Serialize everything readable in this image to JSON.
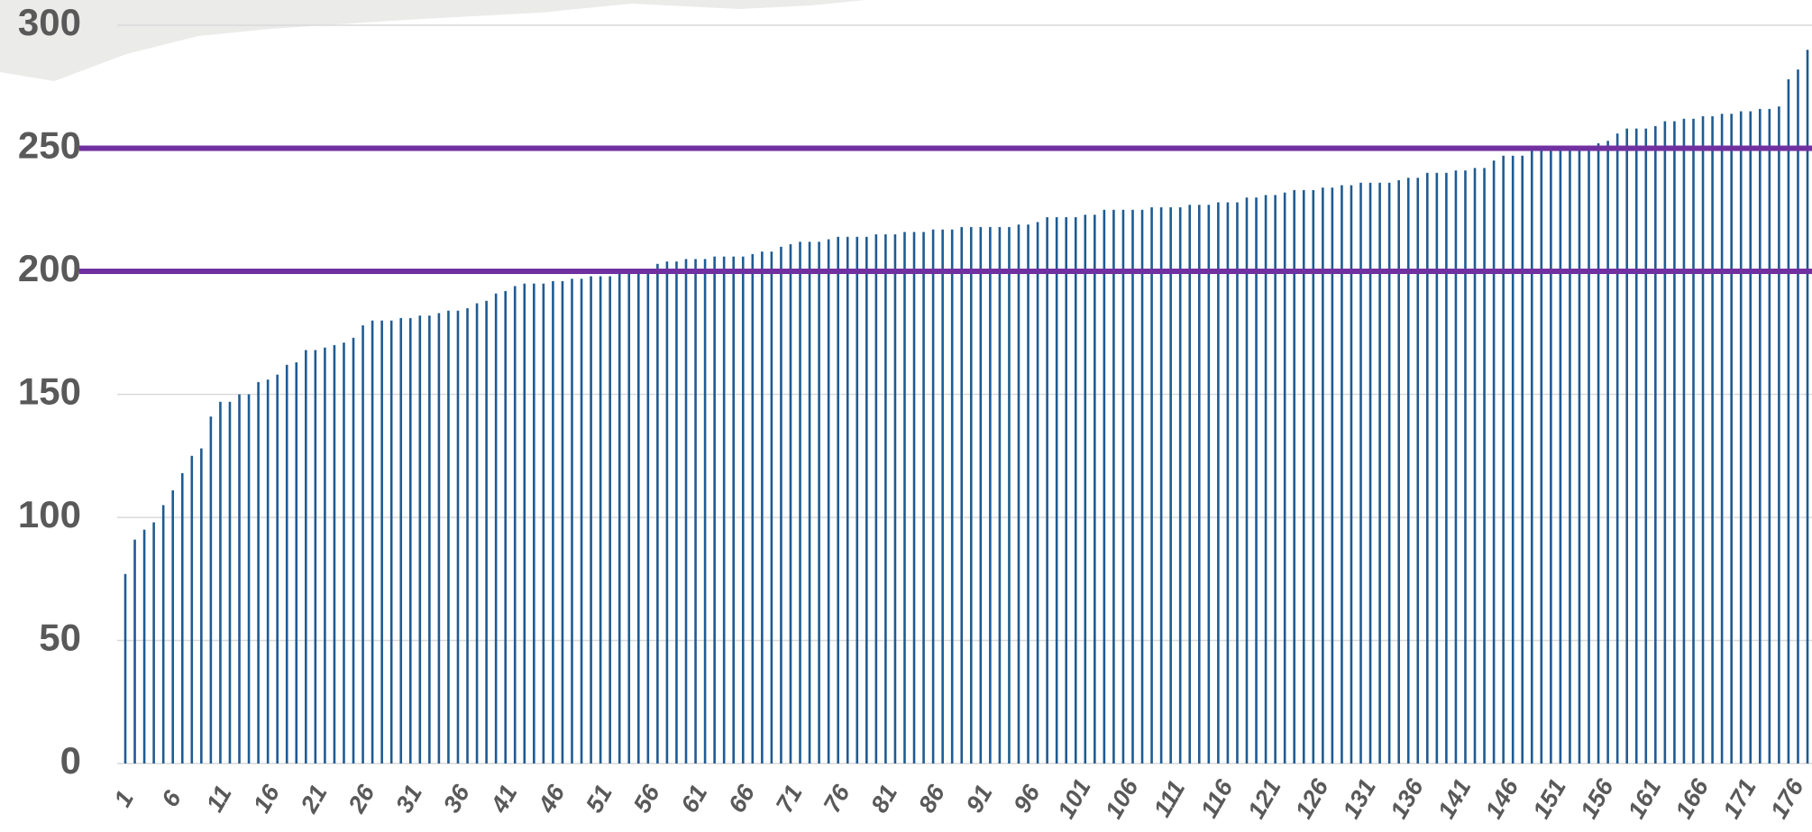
{
  "chart_data": {
    "type": "bar",
    "categories": [
      "1",
      null,
      null,
      null,
      null,
      "6",
      null,
      null,
      null,
      null,
      "11",
      null,
      null,
      null,
      null,
      "16",
      null,
      null,
      null,
      null,
      "21",
      null,
      null,
      null,
      null,
      "26",
      null,
      null,
      null,
      null,
      "31",
      null,
      null,
      null,
      null,
      "36",
      null,
      null,
      null,
      null,
      "41",
      null,
      null,
      null,
      null,
      "46",
      null,
      null,
      null,
      null,
      "51",
      null,
      null,
      null,
      null,
      "56",
      null,
      null,
      null,
      null,
      "61",
      null,
      null,
      null,
      null,
      "66",
      null,
      null,
      null,
      null,
      "71",
      null,
      null,
      null,
      null,
      "76",
      null,
      null,
      null,
      null,
      "81",
      null,
      null,
      null,
      null,
      "86",
      null,
      null,
      null,
      null,
      "91",
      null,
      null,
      null,
      null,
      "96",
      null,
      null,
      null,
      null,
      "101",
      null,
      null,
      null,
      null,
      "106",
      null,
      null,
      null,
      null,
      "111",
      null,
      null,
      null,
      null,
      "116",
      null,
      null,
      null,
      null,
      "121",
      null,
      null,
      null,
      null,
      "126",
      null,
      null,
      null,
      null,
      "131",
      null,
      null,
      null,
      null,
      "136",
      null,
      null,
      null,
      null,
      "141",
      null,
      null,
      null,
      null,
      "146",
      null,
      null,
      null,
      null,
      "151",
      null,
      null,
      null,
      null,
      "156",
      null,
      null,
      null,
      null,
      "161",
      null,
      null,
      null,
      null,
      "166",
      null,
      null,
      null,
      null,
      "171",
      null,
      null,
      null,
      null,
      "176",
      null,
      null
    ],
    "values": [
      77,
      91,
      95,
      98,
      105,
      111,
      118,
      125,
      128,
      141,
      147,
      147,
      150,
      150,
      155,
      156,
      158,
      162,
      163,
      168,
      168,
      169,
      170,
      171,
      173,
      178,
      180,
      180,
      180,
      181,
      181,
      182,
      182,
      183,
      184,
      184,
      185,
      187,
      188,
      191,
      192,
      194,
      195,
      195,
      195,
      196,
      196,
      197,
      197,
      198,
      198,
      198,
      199,
      199,
      200,
      201,
      203,
      204,
      204,
      205,
      205,
      205,
      206,
      206,
      206,
      206,
      207,
      208,
      208,
      210,
      211,
      212,
      212,
      212,
      213,
      214,
      214,
      214,
      214,
      215,
      215,
      215,
      216,
      216,
      216,
      217,
      217,
      217,
      218,
      218,
      218,
      218,
      218,
      218,
      219,
      219,
      220,
      222,
      222,
      222,
      222,
      223,
      223,
      225,
      225,
      225,
      225,
      225,
      226,
      226,
      226,
      226,
      227,
      227,
      227,
      228,
      228,
      228,
      230,
      230,
      231,
      231,
      232,
      233,
      233,
      233,
      234,
      234,
      235,
      235,
      236,
      236,
      236,
      236,
      237,
      238,
      238,
      240,
      240,
      240,
      241,
      241,
      242,
      242,
      245,
      247,
      247,
      247,
      249,
      249,
      250,
      250,
      251,
      251,
      251,
      252,
      253,
      256,
      258,
      258,
      258,
      259,
      261,
      261,
      262,
      262,
      263,
      263,
      264,
      264,
      265,
      265,
      266,
      266,
      267,
      278,
      282,
      290
    ],
    "color": "#1f5b93",
    "ylim": [
      0,
      300
    ],
    "yticks": [
      0,
      50,
      100,
      150,
      200,
      250,
      300
    ],
    "grid": true,
    "reference_lines": [
      200,
      250
    ],
    "reference_color": "#7030a0"
  }
}
